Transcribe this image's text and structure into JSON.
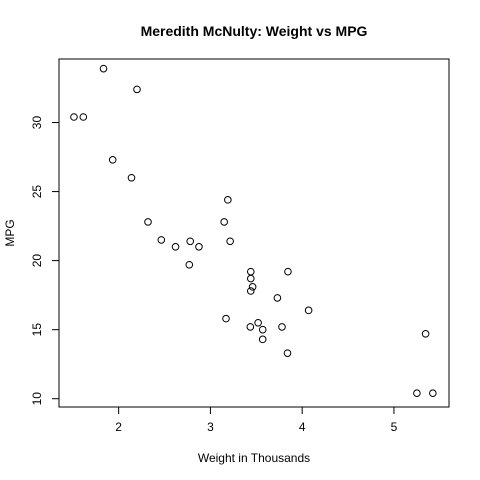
{
  "chart_data": {
    "type": "scatter",
    "title": "Meredith McNulty: Weight vs MPG",
    "xlabel": "Weight in Thousands",
    "ylabel": "MPG",
    "xlim": [
      1.35,
      5.6
    ],
    "ylim": [
      9.4,
      34.6
    ],
    "xticks": [
      2,
      3,
      4,
      5
    ],
    "yticks": [
      10,
      15,
      20,
      25,
      30
    ],
    "grid": false,
    "marker": "open-circle",
    "points": [
      {
        "x": 2.62,
        "y": 21.0
      },
      {
        "x": 2.875,
        "y": 21.0
      },
      {
        "x": 2.32,
        "y": 22.8
      },
      {
        "x": 3.215,
        "y": 21.4
      },
      {
        "x": 3.44,
        "y": 18.7
      },
      {
        "x": 3.46,
        "y": 18.1
      },
      {
        "x": 3.57,
        "y": 14.3
      },
      {
        "x": 3.19,
        "y": 24.4
      },
      {
        "x": 3.15,
        "y": 22.8
      },
      {
        "x": 3.44,
        "y": 19.2
      },
      {
        "x": 3.44,
        "y": 17.8
      },
      {
        "x": 4.07,
        "y": 16.4
      },
      {
        "x": 3.73,
        "y": 17.3
      },
      {
        "x": 3.78,
        "y": 15.2
      },
      {
        "x": 5.25,
        "y": 10.4
      },
      {
        "x": 5.424,
        "y": 10.4
      },
      {
        "x": 5.345,
        "y": 14.7
      },
      {
        "x": 2.2,
        "y": 32.4
      },
      {
        "x": 1.615,
        "y": 30.4
      },
      {
        "x": 1.835,
        "y": 33.9
      },
      {
        "x": 2.465,
        "y": 21.5
      },
      {
        "x": 3.52,
        "y": 15.5
      },
      {
        "x": 3.435,
        "y": 15.2
      },
      {
        "x": 3.84,
        "y": 13.3
      },
      {
        "x": 3.845,
        "y": 19.2
      },
      {
        "x": 1.935,
        "y": 27.3
      },
      {
        "x": 2.14,
        "y": 26.0
      },
      {
        "x": 1.513,
        "y": 30.4
      },
      {
        "x": 3.17,
        "y": 15.8
      },
      {
        "x": 2.77,
        "y": 19.7
      },
      {
        "x": 3.57,
        "y": 15.0
      },
      {
        "x": 2.78,
        "y": 21.4
      }
    ]
  }
}
